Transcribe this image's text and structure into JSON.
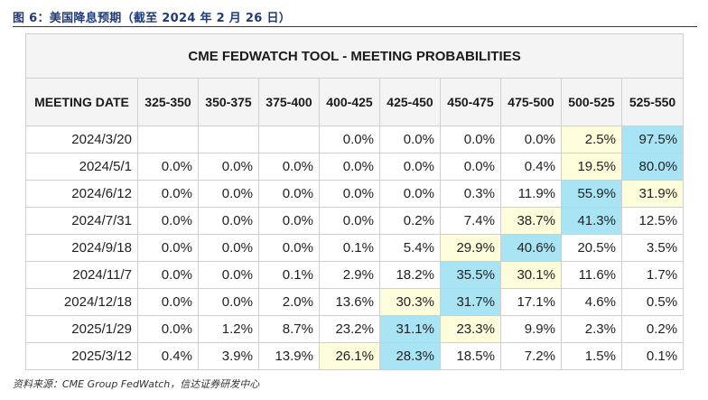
{
  "caption": "图 6：美国降息预期（截至 2024 年 2 月 26 日）",
  "source": "资料来源：CME Group FedWatch，信达证券研发中心",
  "chart_data": {
    "type": "table",
    "title": "CME FEDWATCH TOOL - MEETING PROBABILITIES",
    "row_header": "MEETING DATE",
    "columns": [
      "325-350",
      "350-375",
      "375-400",
      "400-425",
      "425-450",
      "450-475",
      "475-500",
      "500-525",
      "525-550"
    ],
    "rows": [
      {
        "date": "2024/3/20",
        "values": [
          "",
          "",
          "",
          "0.0%",
          "0.0%",
          "0.0%",
          "0.0%",
          "2.5%",
          "97.5%"
        ]
      },
      {
        "date": "2024/5/1",
        "values": [
          "0.0%",
          "0.0%",
          "0.0%",
          "0.0%",
          "0.0%",
          "0.0%",
          "0.4%",
          "19.5%",
          "80.0%"
        ]
      },
      {
        "date": "2024/6/12",
        "values": [
          "0.0%",
          "0.0%",
          "0.0%",
          "0.0%",
          "0.0%",
          "0.3%",
          "11.9%",
          "55.9%",
          "31.9%"
        ]
      },
      {
        "date": "2024/7/31",
        "values": [
          "0.0%",
          "0.0%",
          "0.0%",
          "0.0%",
          "0.2%",
          "7.4%",
          "38.7%",
          "41.3%",
          "12.5%"
        ]
      },
      {
        "date": "2024/9/18",
        "values": [
          "0.0%",
          "0.0%",
          "0.0%",
          "0.1%",
          "5.4%",
          "29.9%",
          "40.6%",
          "20.5%",
          "3.5%"
        ]
      },
      {
        "date": "2024/11/7",
        "values": [
          "0.0%",
          "0.0%",
          "0.1%",
          "2.9%",
          "18.2%",
          "35.5%",
          "30.1%",
          "11.6%",
          "1.7%"
        ]
      },
      {
        "date": "2024/12/18",
        "values": [
          "0.0%",
          "0.0%",
          "2.0%",
          "13.6%",
          "30.3%",
          "31.7%",
          "17.1%",
          "4.6%",
          "0.5%"
        ]
      },
      {
        "date": "2025/1/29",
        "values": [
          "0.0%",
          "1.2%",
          "8.7%",
          "23.2%",
          "31.1%",
          "23.3%",
          "9.9%",
          "2.3%",
          "0.2%"
        ]
      },
      {
        "date": "2025/3/12",
        "values": [
          "0.4%",
          "3.9%",
          "13.9%",
          "26.1%",
          "28.3%",
          "18.5%",
          "7.2%",
          "1.5%",
          "0.1%"
        ]
      }
    ],
    "highlight_colors": {
      "max": "#a9e4f5",
      "high": "#fdfcdb"
    }
  }
}
